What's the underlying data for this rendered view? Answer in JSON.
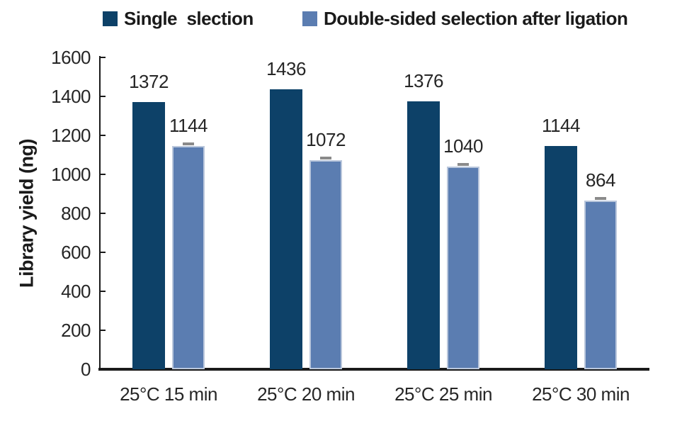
{
  "chart_data": {
    "type": "bar",
    "title": "",
    "categories": [
      "25°C 15 min",
      "25°C 20 min",
      "25°C 25 min",
      "25°C 30 min"
    ],
    "series": [
      {
        "name": "Single  slection",
        "color": "#0d4168",
        "values": [
          1372,
          1436,
          1376,
          1144
        ],
        "has_error_bars": false
      },
      {
        "name": "Double-sided selection after ligation",
        "color": "#5b7db1",
        "border_color": "#bac7dc",
        "values": [
          1144,
          1072,
          1040,
          864
        ],
        "has_error_bars": true,
        "error_bar_ng": 15,
        "error_color": "#8a8a8a"
      }
    ],
    "xlabel": "",
    "ylabel": "Library yield (ng)",
    "ylim": [
      0,
      1600
    ],
    "ytick_step": 200,
    "ytick_labels": [
      "0",
      "200",
      "400",
      "600",
      "800",
      "1000",
      "1200",
      "1400",
      "1600"
    ],
    "grid": false,
    "legend_position": "top",
    "data_labels": true
  }
}
